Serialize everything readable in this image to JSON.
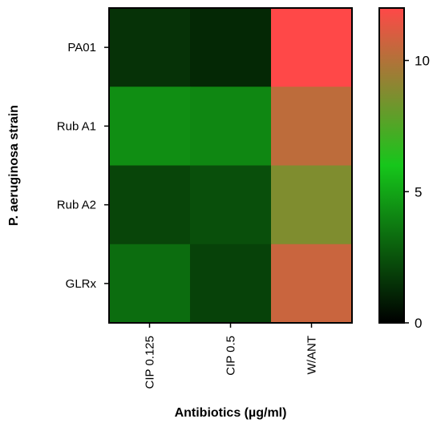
{
  "chart_data": {
    "type": "heatmap",
    "title": "",
    "xlabel": "Antibiotics (µg/ml)",
    "ylabel": "P. aeruginosa strain",
    "columns": [
      "CIP 0.125",
      "CIP 0.5",
      "W/ANT"
    ],
    "rows": [
      "PA01",
      "Rub A1",
      "Rub A2",
      "GLRx"
    ],
    "values": [
      [
        1.5,
        1.2,
        12.0
      ],
      [
        4.3,
        4.1,
        10.3
      ],
      [
        2.1,
        2.4,
        8.7
      ],
      [
        3.3,
        2.0,
        10.6
      ]
    ],
    "colorbar": {
      "range": [
        0,
        12
      ],
      "ticks": [
        0,
        5,
        10
      ],
      "stops": [
        {
          "value": 0,
          "color": "#000000"
        },
        {
          "value": 6,
          "color": "#16c61b"
        },
        {
          "value": 12,
          "color": "#ff4848"
        }
      ]
    }
  }
}
